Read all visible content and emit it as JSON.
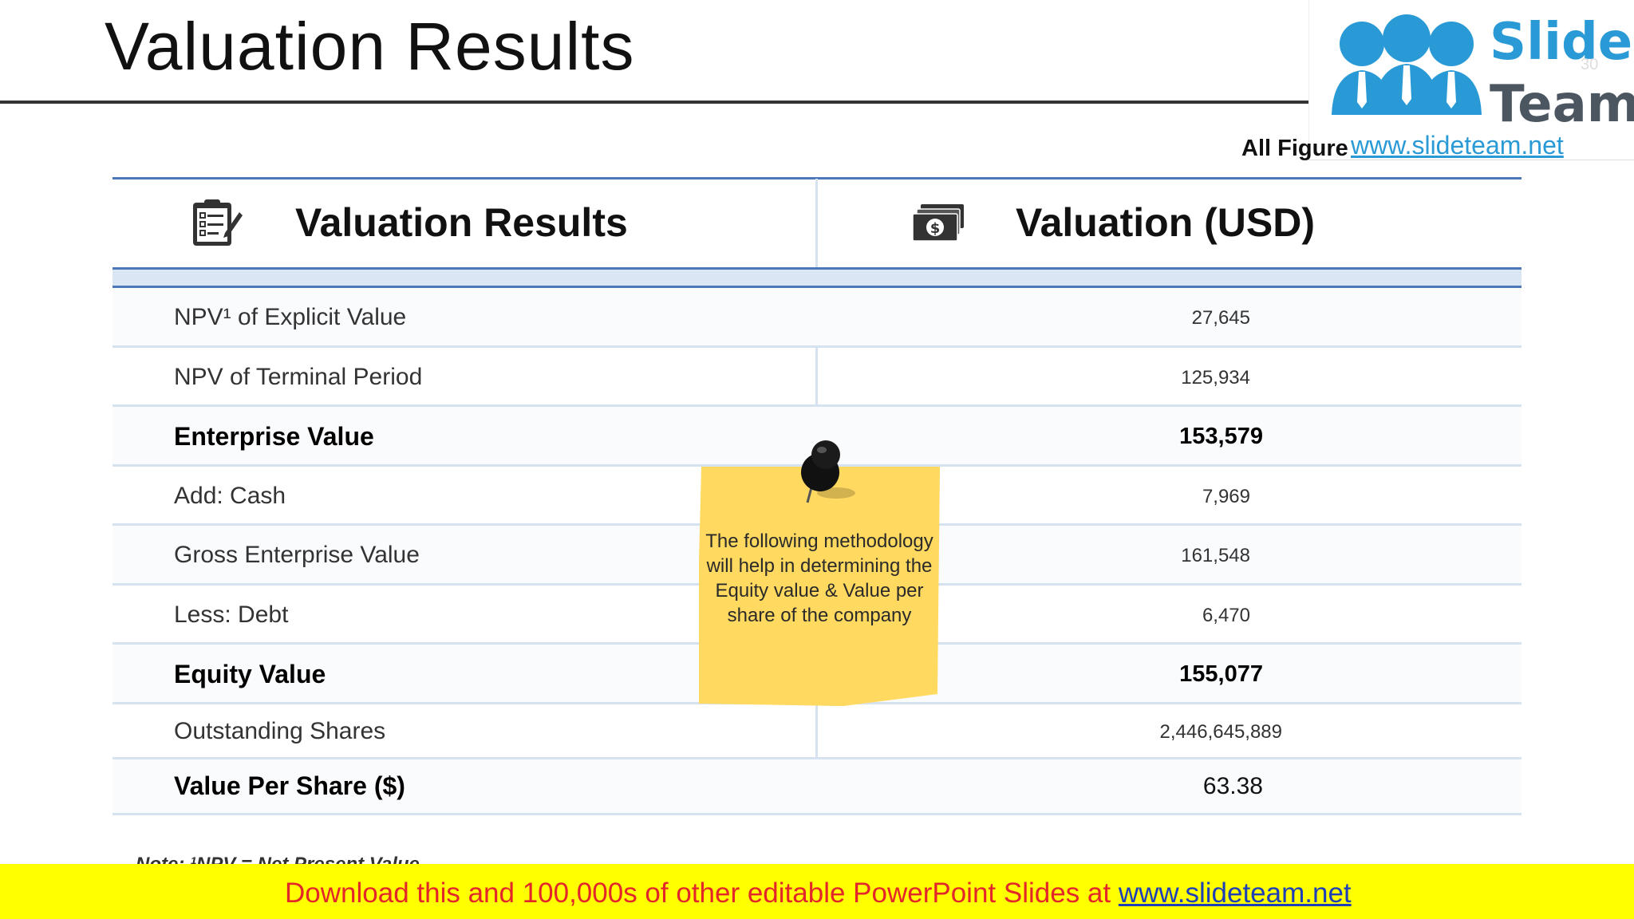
{
  "page": {
    "title": "Valuation Results",
    "all_figures": "All Figures in USD"
  },
  "logo": {
    "brand_top": "Slide",
    "brand_bottom": "Team",
    "page_number": "30",
    "link": "www.slideteam.net"
  },
  "table": {
    "headers": {
      "left": "Valuation Results",
      "right": "Valuation (USD)",
      "left_icon": "clipboard-icon",
      "right_icon": "money-stack-icon"
    },
    "rows": [
      {
        "label": "NPV¹ of Explicit Value",
        "value": "27,645",
        "bold": false
      },
      {
        "label": "NPV of Terminal Period",
        "value": "125,934",
        "bold": false
      },
      {
        "label": "Enterprise Value",
        "value": "153,579",
        "bold": true
      },
      {
        "label": "Add: Cash",
        "value": "7,969",
        "bold": false
      },
      {
        "label": "Gross Enterprise Value",
        "value": "161,548",
        "bold": false
      },
      {
        "label": "Less: Debt",
        "value": "6,470",
        "bold": false
      },
      {
        "label": "Equity Value",
        "value": "155,077",
        "bold": true
      },
      {
        "label": "Outstanding Shares",
        "value": "2,446,645,889",
        "bold": false
      },
      {
        "label": "Value Per Share ($)",
        "value": "63.38",
        "bold": true
      }
    ]
  },
  "sticky_note": {
    "text": "The following methodology will help in determining the Equity value & Value per share of the company",
    "icon": "pushpin-icon"
  },
  "footnote": "Note: ¹NPV = Net Present Value",
  "banner": {
    "text": "Download this and 100,000s of other editable PowerPoint Slides at ",
    "link": "www.slideteam.net"
  },
  "colors": {
    "accent_blue": "#4a78b8",
    "banner_yellow": "#ffff00",
    "banner_red": "#e2262a",
    "note_yellow": "#ffd960"
  }
}
